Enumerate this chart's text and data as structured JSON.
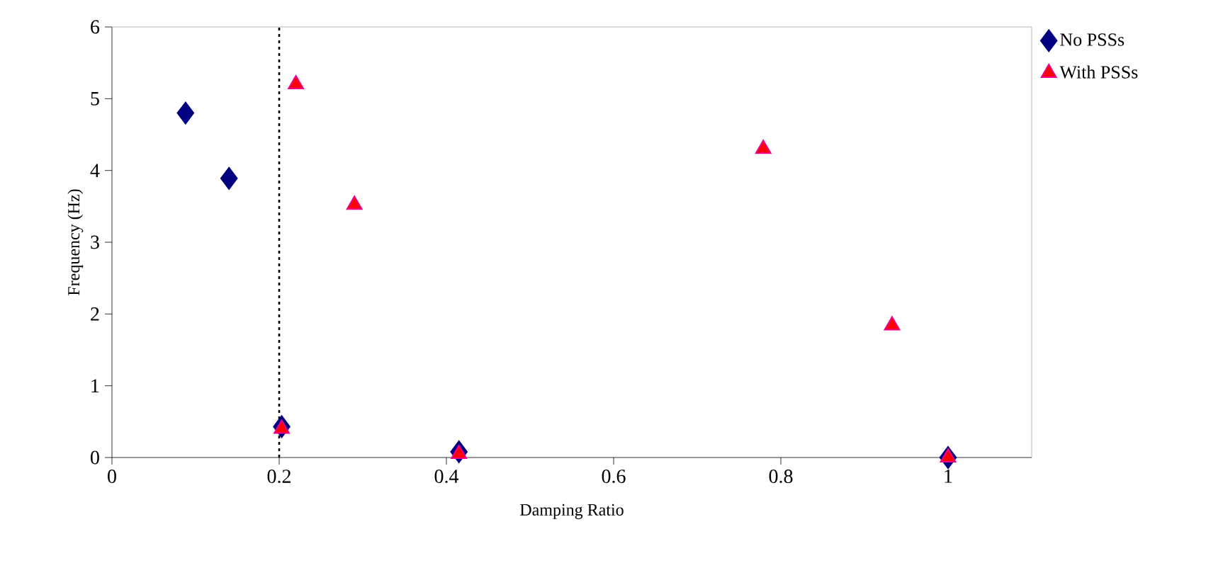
{
  "chart_data": {
    "type": "scatter",
    "xlabel": "Damping Ratio",
    "ylabel": "Frequency (Hz)",
    "xlim": [
      0,
      1.1
    ],
    "ylim": [
      0,
      6
    ],
    "xticks": [
      0,
      0.2,
      0.4,
      0.6,
      0.8,
      1
    ],
    "yticks": [
      0,
      1,
      2,
      3,
      4,
      5,
      6
    ],
    "grid": false,
    "legend": "top right",
    "ref_lines": [
      {
        "axis": "x",
        "value": 0.2,
        "color": "#000000",
        "line_style": "dotted"
      }
    ],
    "series": [
      {
        "name": "No PSSs",
        "color": "#000080",
        "marker": "diamond",
        "x": [
          0.088,
          0.14,
          0.203,
          0.415,
          1.0
        ],
        "values": [
          4.8,
          3.89,
          0.43,
          0.08,
          0
        ]
      },
      {
        "name": "With PSSs",
        "color": "#ff0000",
        "marker": "triangle",
        "x": [
          0.22,
          0.29,
          0.203,
          0.415,
          0.779,
          0.933,
          1.0
        ],
        "values": [
          5.2,
          3.52,
          0.4,
          0.05,
          4.3,
          1.84,
          0
        ]
      }
    ]
  }
}
